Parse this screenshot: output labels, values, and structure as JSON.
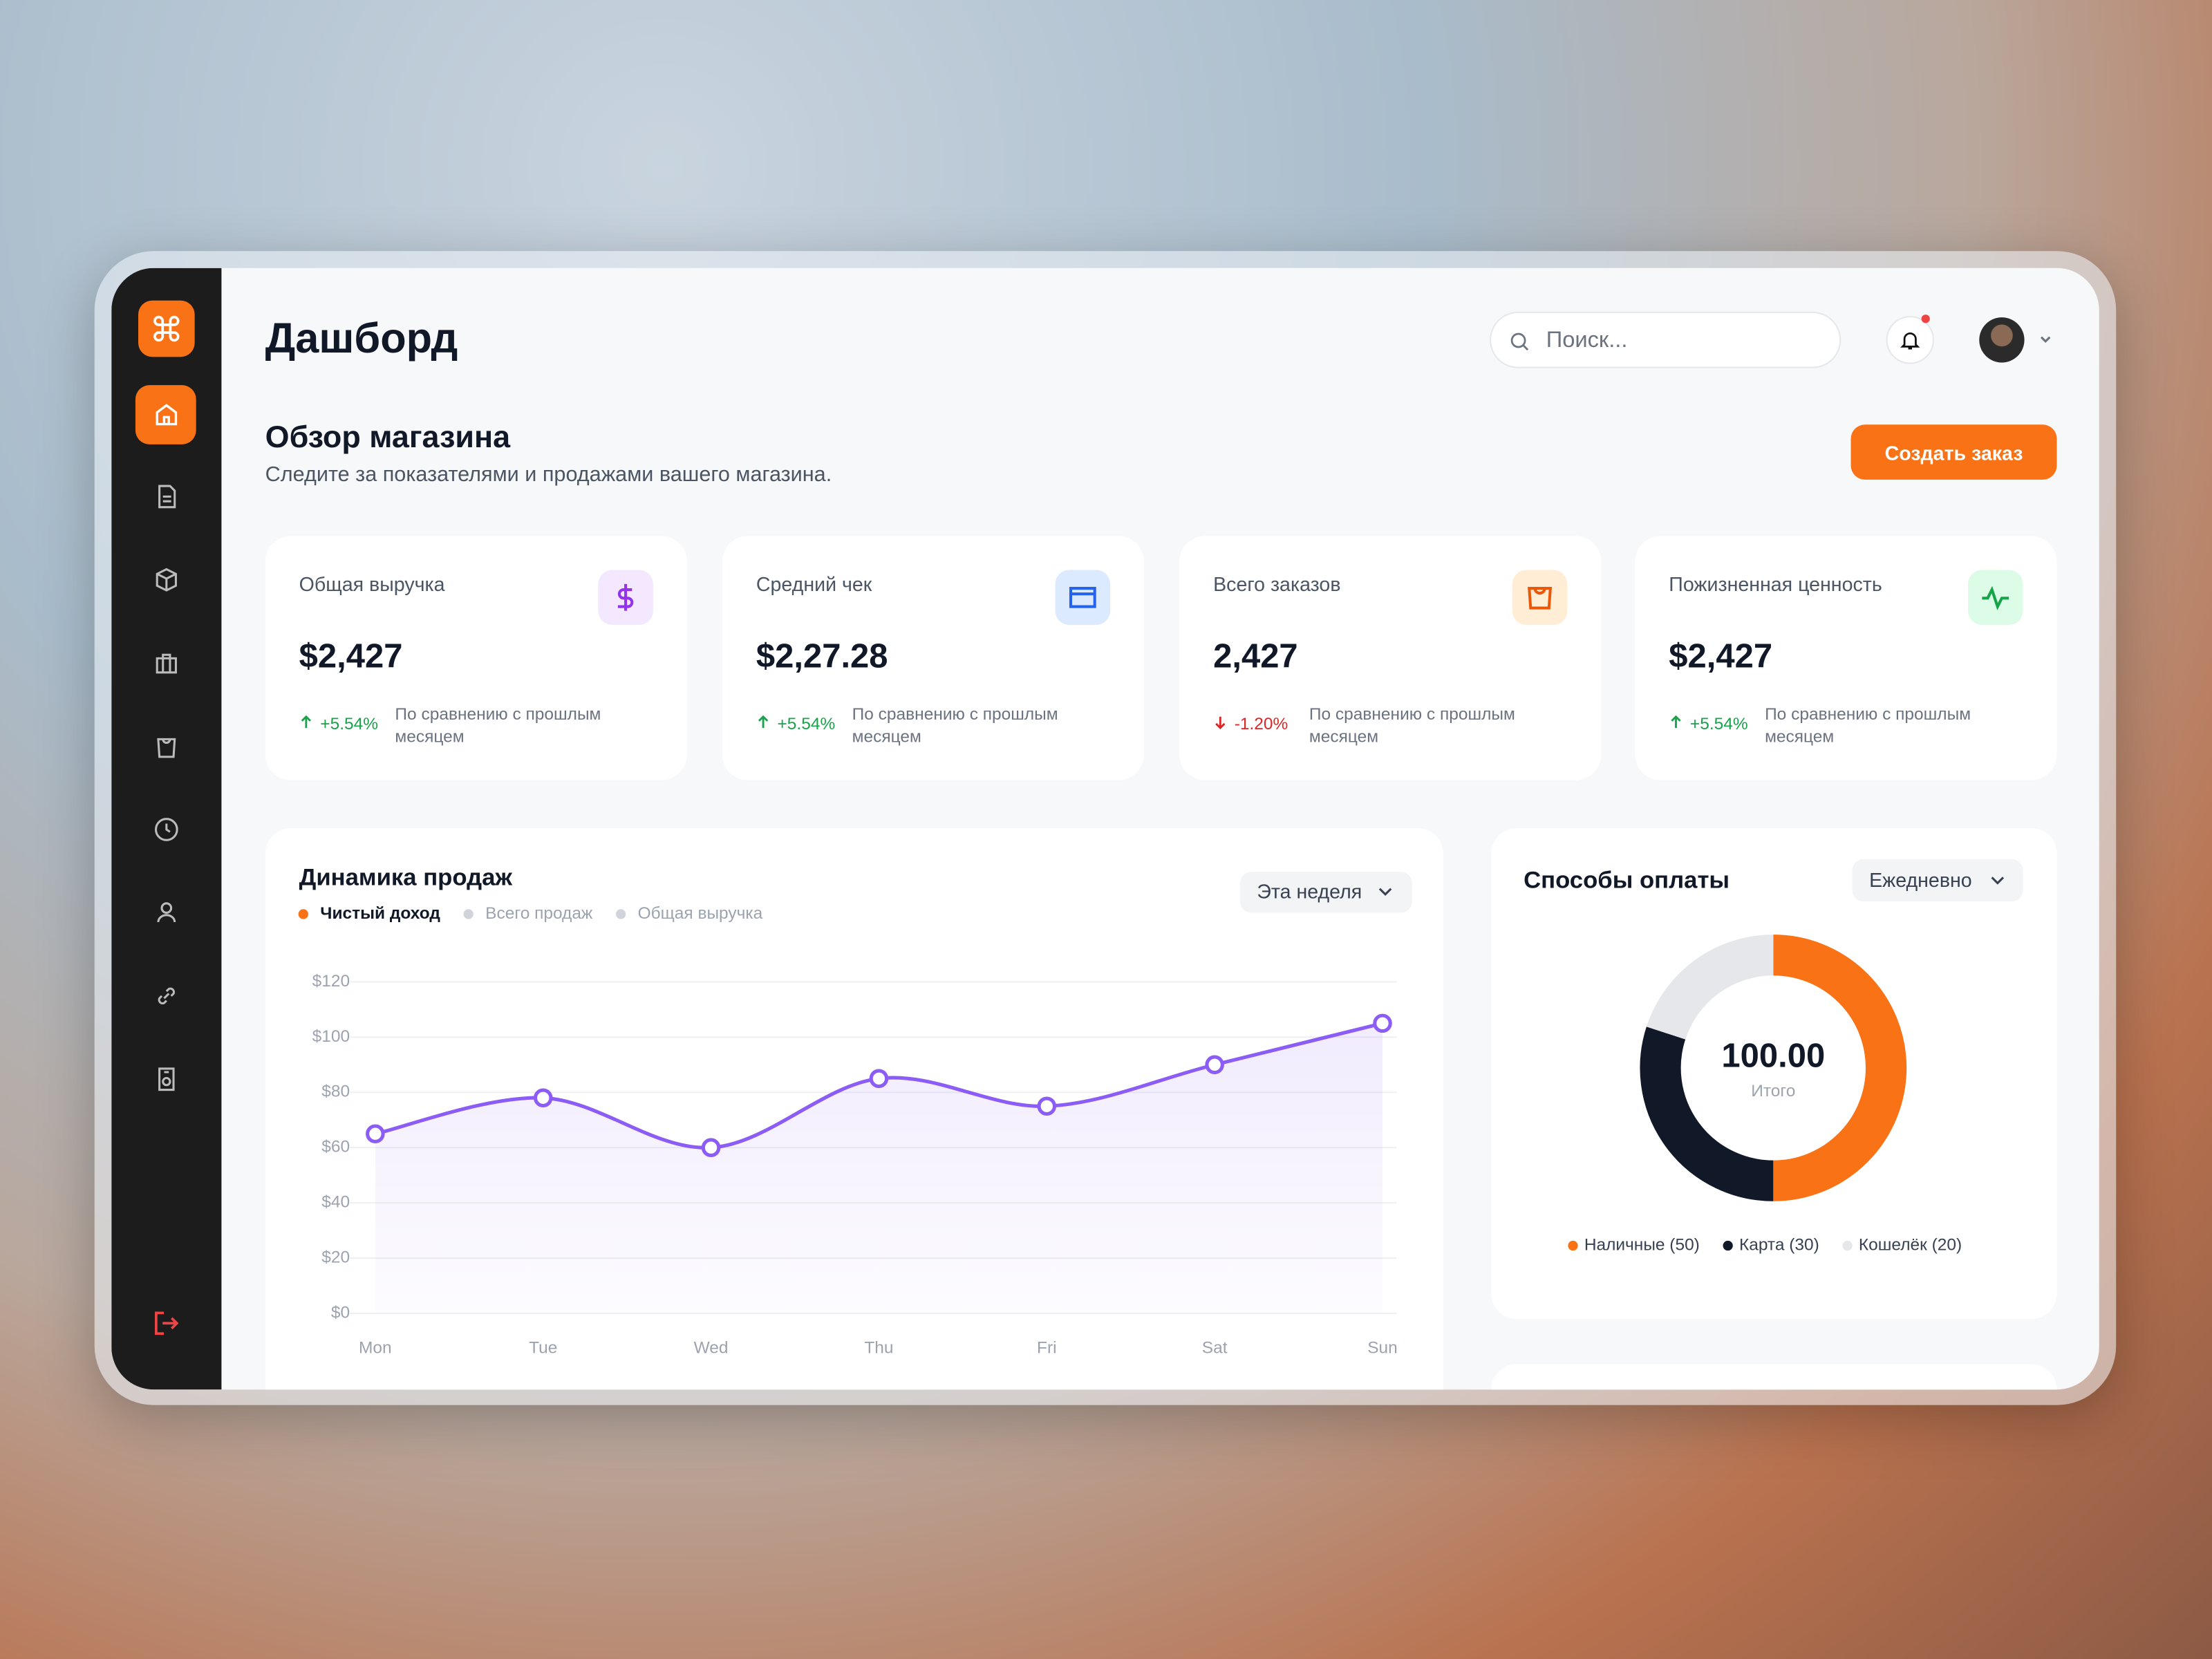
{
  "header": {
    "title": "Дашборд",
    "search_placeholder": "Поиск..."
  },
  "overview": {
    "title": "Обзор магазина",
    "subtitle": "Следите за показателями и продажами вашего магазина.",
    "button": "Создать заказ"
  },
  "stats": [
    {
      "label": "Общая выручка",
      "value": "$2,427",
      "change": "+5.54%",
      "trend": "up",
      "note": "По сравнению с прошлым месяцем",
      "icon_color": "#9333ea",
      "icon_bg": "#f3e8ff"
    },
    {
      "label": "Средний чек",
      "value": "$2,27.28",
      "change": "+5.54%",
      "trend": "up",
      "note": "По сравнению с прошлым месяцем",
      "icon_color": "#2563eb",
      "icon_bg": "#dbeafe"
    },
    {
      "label": "Всего заказов",
      "value": "2,427",
      "change": "-1.20%",
      "trend": "down",
      "note": "По сравнению с прошлым месяцем",
      "icon_color": "#ea580c",
      "icon_bg": "#ffedd5"
    },
    {
      "label": "Пожизненная ценность",
      "value": "$2,427",
      "change": "+5.54%",
      "trend": "up",
      "note": "По сравнению с прошлым месяцем",
      "icon_color": "#16a34a",
      "icon_bg": "#dcfce7"
    }
  ],
  "sales_chart": {
    "type": "line",
    "title": "Динамика продаж",
    "period": "Эта неделя",
    "legend": [
      {
        "name": "Чистый доход",
        "color": "#f97316"
      },
      {
        "name": "Всего продаж",
        "color": "#d1d5db"
      },
      {
        "name": "Общая выручка",
        "color": "#d1d5db"
      }
    ],
    "categories": [
      "Mon",
      "Tue",
      "Wed",
      "Thu",
      "Fri",
      "Sat",
      "Sun"
    ],
    "values": [
      65,
      78,
      60,
      85,
      75,
      90,
      105
    ],
    "color": "#8b5cf6",
    "ylim": [
      0,
      120
    ],
    "yticks": [
      {
        "value": 0,
        "label": "$0"
      },
      {
        "value": 20,
        "label": "$20"
      },
      {
        "value": 40,
        "label": "$40"
      },
      {
        "value": 60,
        "label": "$60"
      },
      {
        "value": 80,
        "label": "$80"
      },
      {
        "value": 100,
        "label": "$100"
      },
      {
        "value": 120,
        "label": "$120"
      }
    ],
    "grid": true
  },
  "payment_chart": {
    "type": "donut",
    "title": "Способы оплаты",
    "period": "Ежедневно",
    "total": "100.00",
    "total_label": "Итого",
    "categories": [
      "Наличные",
      "Карта",
      "Кошелёк"
    ],
    "values": [
      50,
      30,
      20
    ],
    "colors": [
      "#f97316",
      "#111827",
      "#e5e7eb"
    ],
    "legend_labels": [
      "Наличные (50)",
      "Карта (30)",
      "Кошелёк (20)"
    ]
  }
}
